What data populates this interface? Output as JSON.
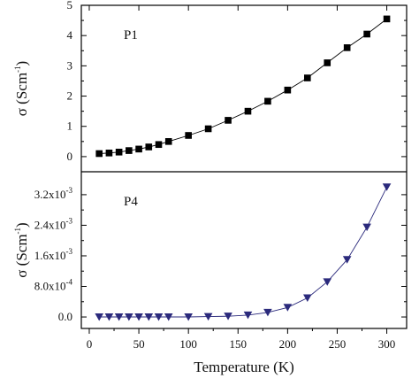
{
  "chart_data": [
    {
      "type": "scatter",
      "panel_label": "P1",
      "ylabel": "σ (Scm",
      "ylabel_sup": "-1",
      "ylabel_close": ")",
      "ylim": [
        -0.5,
        5
      ],
      "yticks": [
        "0",
        "1",
        "2",
        "3",
        "4",
        "5"
      ],
      "ytick_values": [
        0,
        1,
        2,
        3,
        4,
        5
      ],
      "marker": "square",
      "color": "#000000",
      "x": [
        10,
        20,
        30,
        40,
        50,
        60,
        70,
        80,
        100,
        120,
        140,
        160,
        180,
        200,
        220,
        240,
        260,
        280,
        300
      ],
      "y": [
        0.1,
        0.12,
        0.15,
        0.2,
        0.25,
        0.32,
        0.4,
        0.5,
        0.7,
        0.92,
        1.2,
        1.5,
        1.83,
        2.2,
        2.6,
        3.1,
        3.6,
        4.05,
        4.55
      ]
    },
    {
      "type": "scatter",
      "panel_label": "P4",
      "ylabel": "σ (Scm",
      "ylabel_sup": "-1",
      "ylabel_close": ")",
      "ylim": [
        -0.0003,
        0.0038
      ],
      "yticks": [
        {
          "base": "0.0",
          "sup": ""
        },
        {
          "base": "8.0x10",
          "sup": "-4"
        },
        {
          "base": "1.6x10",
          "sup": "-3"
        },
        {
          "base": "2.4x10",
          "sup": "-3"
        },
        {
          "base": "3.2x10",
          "sup": "-3"
        }
      ],
      "ytick_values": [
        0,
        0.0008,
        0.0016,
        0.0024,
        0.0032
      ],
      "marker": "triangle-down",
      "color": "#2b2a7c",
      "x": [
        10,
        20,
        30,
        40,
        50,
        60,
        70,
        80,
        100,
        120,
        140,
        160,
        180,
        200,
        220,
        240,
        260,
        280,
        300
      ],
      "y": [
        0,
        0,
        0,
        0,
        0,
        0,
        0,
        0,
        0,
        1e-05,
        2e-05,
        5e-05,
        0.00012,
        0.00025,
        0.0005,
        0.00092,
        0.0015,
        0.00235,
        0.0034
      ]
    }
  ],
  "xaxis": {
    "label": "Temperature (K)",
    "xlim": [
      -8,
      320
    ],
    "ticks": [
      "0",
      "50",
      "100",
      "150",
      "200",
      "250",
      "300"
    ],
    "tick_values": [
      0,
      50,
      100,
      150,
      200,
      250,
      300
    ]
  }
}
